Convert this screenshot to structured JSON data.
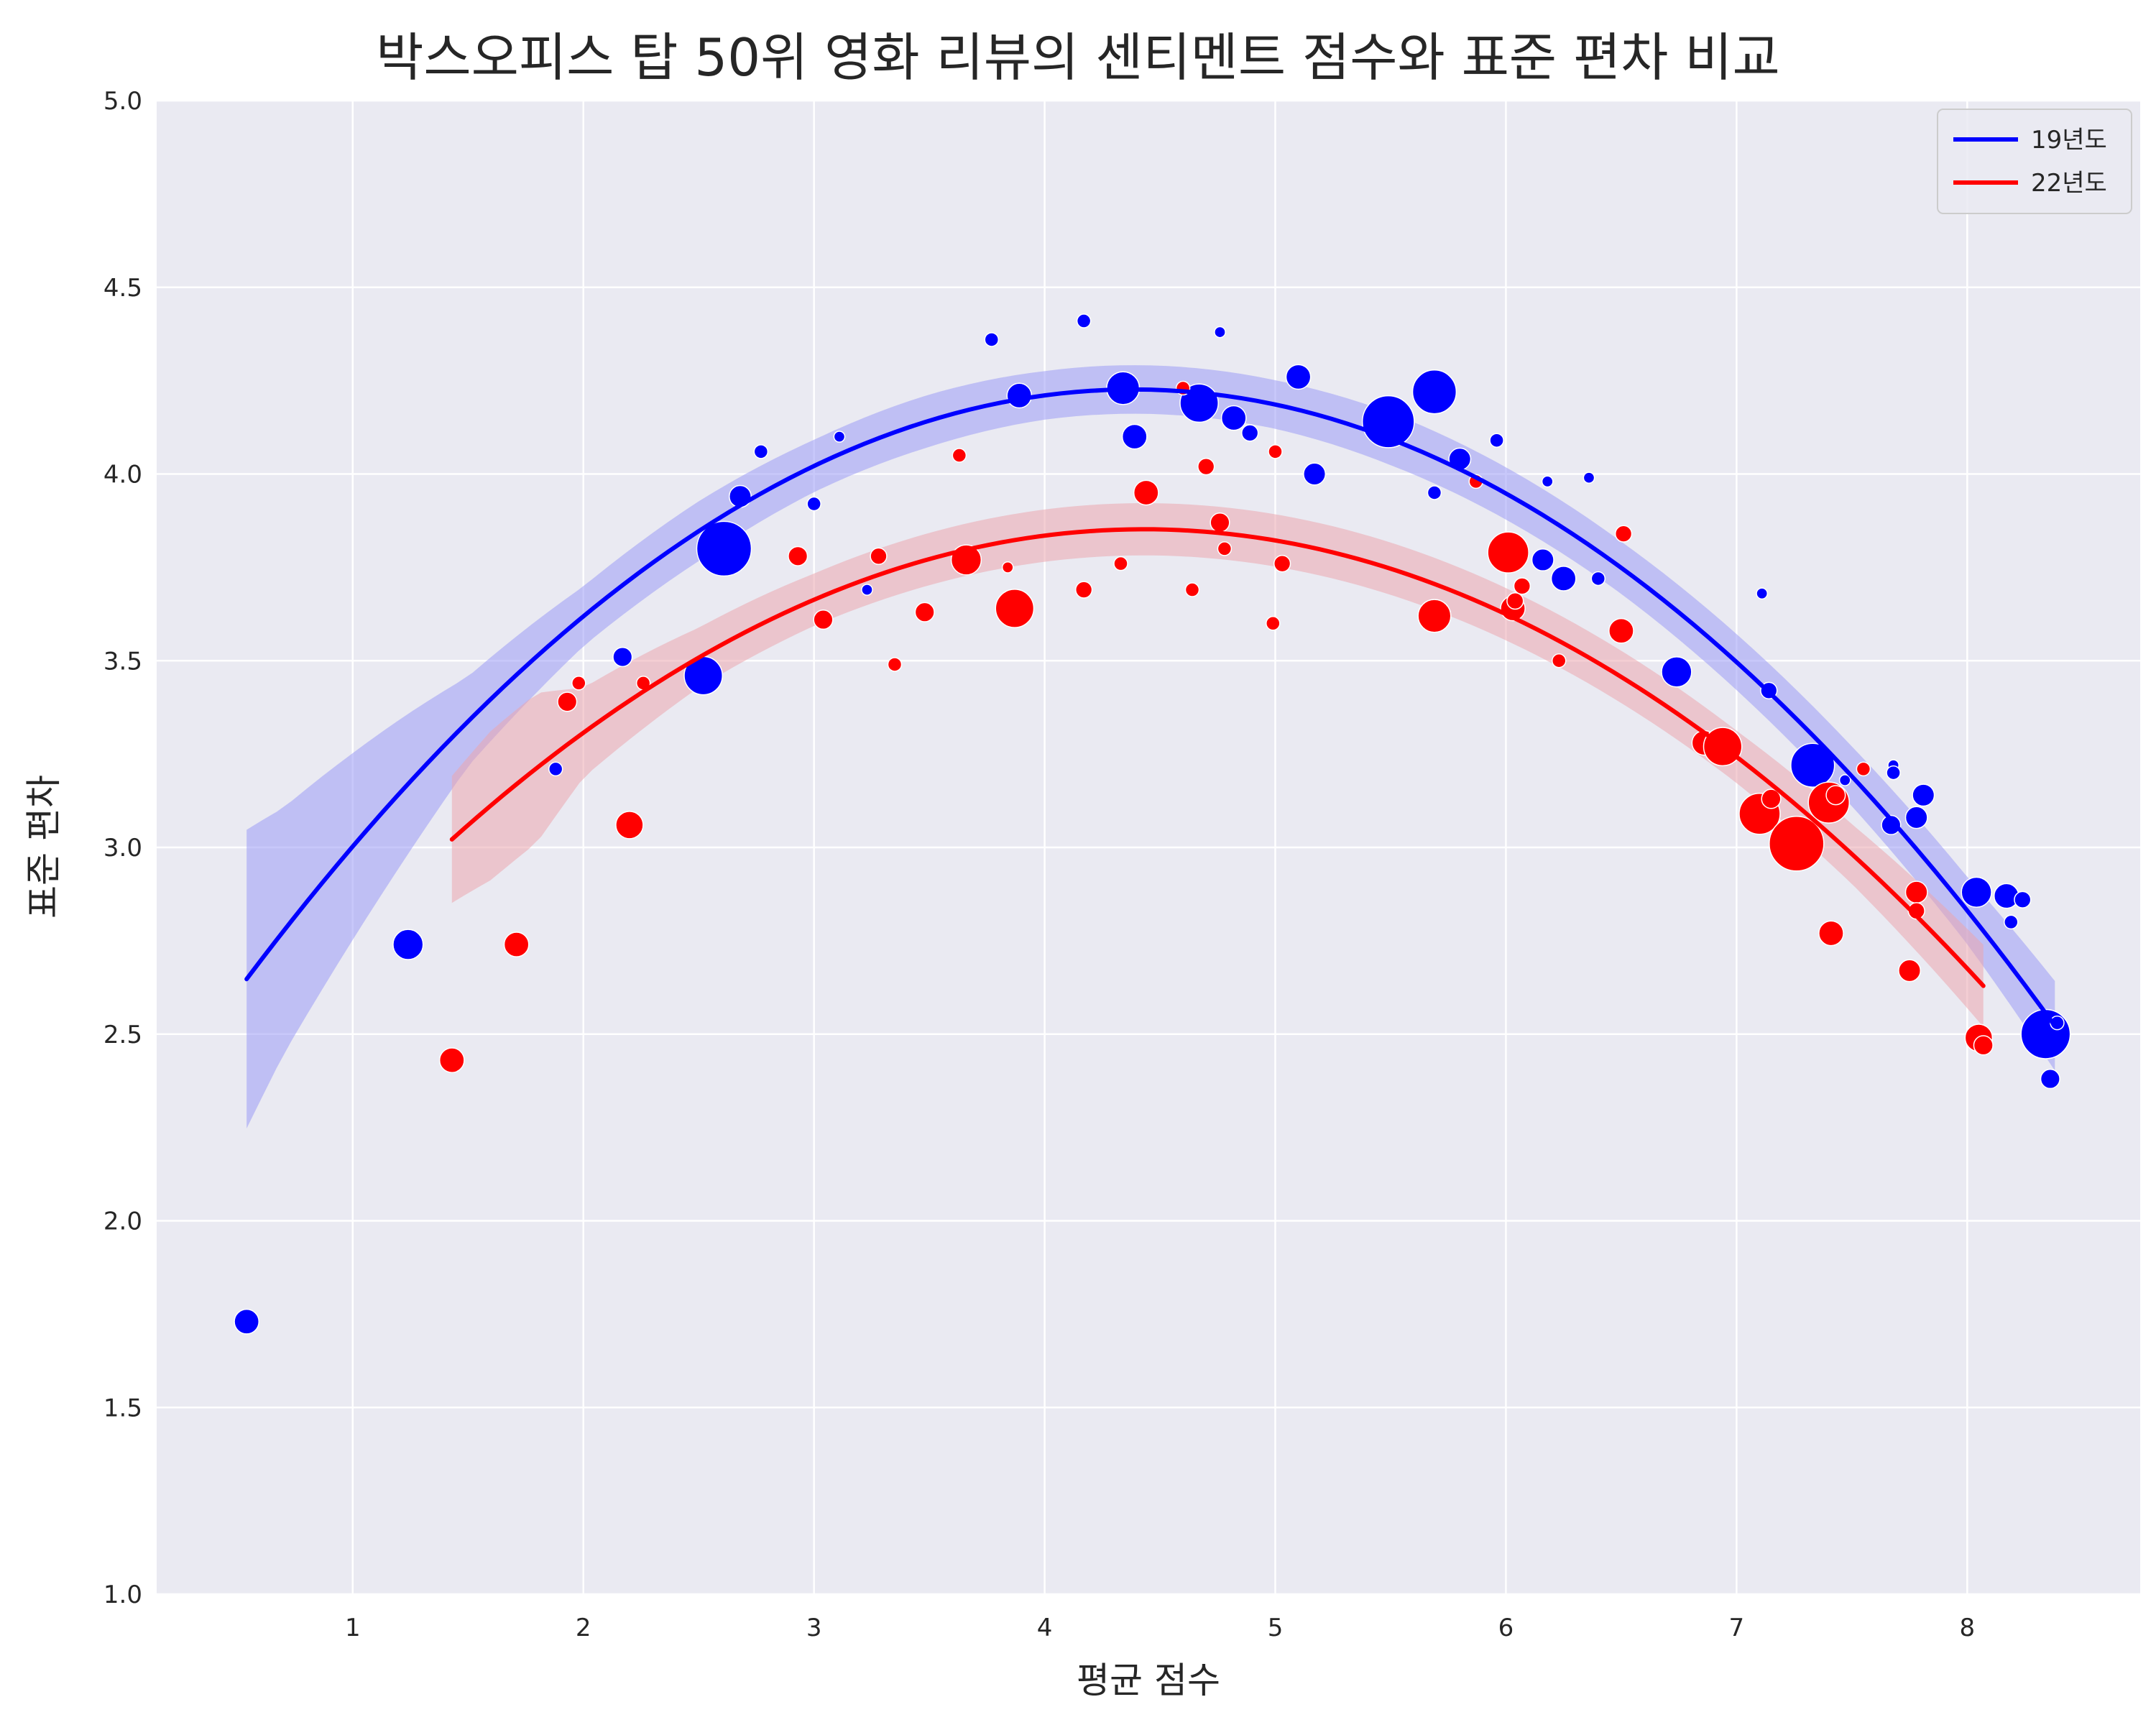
{
  "chart_data": {
    "type": "scatter",
    "title": "박스오피스 탑 50위 영화 리뷰의 센티멘트 점수와 표준 편차 비교",
    "xlabel": "평균 점수",
    "ylabel": "표준 편차",
    "xlim": [
      0.15,
      8.75
    ],
    "ylim": [
      1.0,
      5.0
    ],
    "xticks": [
      1,
      2,
      3,
      4,
      5,
      6,
      7,
      8
    ],
    "yticks": [
      1.0,
      1.5,
      2.0,
      2.5,
      3.0,
      3.5,
      4.0,
      4.5,
      5.0
    ],
    "grid": true,
    "legend_position": "top-right",
    "background": "#eaeaf2",
    "series": [
      {
        "name": "19년도",
        "color": "#0000ff",
        "band_color": "#9b9bf5",
        "fit_coeffs": [
          -0.1068,
          0.9367,
          2.1726
        ],
        "fit_x_range": [
          0.54,
          8.38
        ],
        "band_halfwidth": [
          [
            0.54,
            0.4
          ],
          [
            0.7,
            0.33
          ],
          [
            1.0,
            0.25
          ],
          [
            1.5,
            0.12
          ],
          [
            2.0,
            0.08
          ],
          [
            2.5,
            0.08
          ],
          [
            3.0,
            0.07
          ],
          [
            3.5,
            0.07
          ],
          [
            4.0,
            0.065
          ],
          [
            4.5,
            0.065
          ],
          [
            5.0,
            0.065
          ],
          [
            5.5,
            0.07
          ],
          [
            6.0,
            0.07
          ],
          [
            6.5,
            0.07
          ],
          [
            7.0,
            0.075
          ],
          [
            7.5,
            0.08
          ],
          [
            8.0,
            0.09
          ],
          [
            8.38,
            0.12
          ]
        ],
        "points": [
          {
            "x": 0.54,
            "y": 1.73,
            "size": 9
          },
          {
            "x": 1.24,
            "y": 2.74,
            "size": 11
          },
          {
            "x": 1.88,
            "y": 3.21,
            "size": 5
          },
          {
            "x": 2.17,
            "y": 3.51,
            "size": 7
          },
          {
            "x": 2.52,
            "y": 3.46,
            "size": 14
          },
          {
            "x": 2.61,
            "y": 3.8,
            "size": 20
          },
          {
            "x": 2.68,
            "y": 3.94,
            "size": 8
          },
          {
            "x": 2.77,
            "y": 4.06,
            "size": 5
          },
          {
            "x": 3.0,
            "y": 3.92,
            "size": 5
          },
          {
            "x": 3.11,
            "y": 4.1,
            "size": 4
          },
          {
            "x": 3.23,
            "y": 3.69,
            "size": 4
          },
          {
            "x": 3.77,
            "y": 4.36,
            "size": 5
          },
          {
            "x": 3.89,
            "y": 4.21,
            "size": 9
          },
          {
            "x": 4.17,
            "y": 4.41,
            "size": 5
          },
          {
            "x": 4.34,
            "y": 4.23,
            "size": 12
          },
          {
            "x": 4.39,
            "y": 4.1,
            "size": 9
          },
          {
            "x": 4.67,
            "y": 4.19,
            "size": 14
          },
          {
            "x": 4.76,
            "y": 4.38,
            "size": 4
          },
          {
            "x": 4.82,
            "y": 4.15,
            "size": 9
          },
          {
            "x": 4.89,
            "y": 4.11,
            "size": 6
          },
          {
            "x": 5.1,
            "y": 4.26,
            "size": 9
          },
          {
            "x": 5.17,
            "y": 4.0,
            "size": 8
          },
          {
            "x": 5.49,
            "y": 4.14,
            "size": 19
          },
          {
            "x": 5.69,
            "y": 4.22,
            "size": 16
          },
          {
            "x": 5.69,
            "y": 3.95,
            "size": 5
          },
          {
            "x": 5.8,
            "y": 4.04,
            "size": 8
          },
          {
            "x": 5.96,
            "y": 4.09,
            "size": 5
          },
          {
            "x": 6.16,
            "y": 3.77,
            "size": 8
          },
          {
            "x": 6.18,
            "y": 3.98,
            "size": 4
          },
          {
            "x": 6.25,
            "y": 3.72,
            "size": 9
          },
          {
            "x": 6.36,
            "y": 3.99,
            "size": 4
          },
          {
            "x": 6.4,
            "y": 3.72,
            "size": 5
          },
          {
            "x": 6.74,
            "y": 3.47,
            "size": 11
          },
          {
            "x": 7.11,
            "y": 3.68,
            "size": 4
          },
          {
            "x": 7.14,
            "y": 3.42,
            "size": 6
          },
          {
            "x": 7.33,
            "y": 3.22,
            "size": 16
          },
          {
            "x": 7.47,
            "y": 3.18,
            "size": 4
          },
          {
            "x": 7.67,
            "y": 3.06,
            "size": 7
          },
          {
            "x": 7.68,
            "y": 3.22,
            "size": 4
          },
          {
            "x": 7.68,
            "y": 3.2,
            "size": 5
          },
          {
            "x": 7.78,
            "y": 3.08,
            "size": 8
          },
          {
            "x": 7.81,
            "y": 3.14,
            "size": 8
          },
          {
            "x": 8.04,
            "y": 2.88,
            "size": 11
          },
          {
            "x": 8.17,
            "y": 2.87,
            "size": 9
          },
          {
            "x": 8.19,
            "y": 2.8,
            "size": 5
          },
          {
            "x": 8.24,
            "y": 2.86,
            "size": 6
          },
          {
            "x": 8.34,
            "y": 2.5,
            "size": 18
          },
          {
            "x": 8.36,
            "y": 2.38,
            "size": 7
          },
          {
            "x": 8.39,
            "y": 2.53,
            "size": 5
          }
        ]
      },
      {
        "name": "22년도",
        "color": "#ff0000",
        "band_color": "#eba6af",
        "fit_coeffs": [
          -0.0923,
          0.8178,
          2.0406
        ],
        "fit_x_range": [
          1.43,
          8.07
        ],
        "band_halfwidth": [
          [
            1.43,
            0.17
          ],
          [
            1.6,
            0.2
          ],
          [
            1.8,
            0.2
          ],
          [
            2.0,
            0.12
          ],
          [
            2.5,
            0.08
          ],
          [
            3.0,
            0.07
          ],
          [
            3.5,
            0.07
          ],
          [
            4.0,
            0.07
          ],
          [
            4.5,
            0.07
          ],
          [
            5.0,
            0.07
          ],
          [
            5.5,
            0.07
          ],
          [
            6.0,
            0.07
          ],
          [
            6.5,
            0.07
          ],
          [
            7.0,
            0.07
          ],
          [
            7.5,
            0.08
          ],
          [
            8.07,
            0.11
          ]
        ],
        "points": [
          {
            "x": 1.43,
            "y": 2.43,
            "size": 9
          },
          {
            "x": 1.71,
            "y": 2.74,
            "size": 9
          },
          {
            "x": 1.93,
            "y": 3.39,
            "size": 7
          },
          {
            "x": 1.98,
            "y": 3.44,
            "size": 5
          },
          {
            "x": 2.2,
            "y": 3.06,
            "size": 10
          },
          {
            "x": 2.26,
            "y": 3.44,
            "size": 5
          },
          {
            "x": 2.93,
            "y": 3.78,
            "size": 7
          },
          {
            "x": 3.04,
            "y": 3.61,
            "size": 7
          },
          {
            "x": 3.28,
            "y": 3.78,
            "size": 6
          },
          {
            "x": 3.35,
            "y": 3.49,
            "size": 5
          },
          {
            "x": 3.48,
            "y": 3.63,
            "size": 7
          },
          {
            "x": 3.63,
            "y": 4.05,
            "size": 5
          },
          {
            "x": 3.66,
            "y": 3.77,
            "size": 11
          },
          {
            "x": 3.84,
            "y": 3.75,
            "size": 4
          },
          {
            "x": 3.87,
            "y": 3.64,
            "size": 14
          },
          {
            "x": 4.17,
            "y": 3.69,
            "size": 6
          },
          {
            "x": 4.33,
            "y": 3.76,
            "size": 5
          },
          {
            "x": 4.44,
            "y": 3.95,
            "size": 9
          },
          {
            "x": 4.6,
            "y": 4.23,
            "size": 5
          },
          {
            "x": 4.64,
            "y": 3.69,
            "size": 5
          },
          {
            "x": 4.7,
            "y": 4.02,
            "size": 6
          },
          {
            "x": 4.76,
            "y": 3.87,
            "size": 7
          },
          {
            "x": 4.78,
            "y": 3.8,
            "size": 5
          },
          {
            "x": 4.99,
            "y": 3.6,
            "size": 5
          },
          {
            "x": 5.0,
            "y": 4.06,
            "size": 5
          },
          {
            "x": 5.03,
            "y": 3.76,
            "size": 6
          },
          {
            "x": 5.69,
            "y": 3.62,
            "size": 12
          },
          {
            "x": 5.87,
            "y": 3.98,
            "size": 5
          },
          {
            "x": 6.01,
            "y": 3.79,
            "size": 15
          },
          {
            "x": 6.03,
            "y": 3.64,
            "size": 9
          },
          {
            "x": 6.04,
            "y": 3.66,
            "size": 6
          },
          {
            "x": 6.07,
            "y": 3.7,
            "size": 6
          },
          {
            "x": 6.23,
            "y": 3.5,
            "size": 5
          },
          {
            "x": 6.5,
            "y": 3.58,
            "size": 9
          },
          {
            "x": 6.51,
            "y": 3.84,
            "size": 6
          },
          {
            "x": 6.86,
            "y": 3.28,
            "size": 9
          },
          {
            "x": 6.94,
            "y": 3.27,
            "size": 14
          },
          {
            "x": 7.1,
            "y": 3.09,
            "size": 15
          },
          {
            "x": 7.15,
            "y": 3.13,
            "size": 7
          },
          {
            "x": 7.26,
            "y": 3.01,
            "size": 20
          },
          {
            "x": 7.4,
            "y": 3.12,
            "size": 15
          },
          {
            "x": 7.41,
            "y": 2.77,
            "size": 9
          },
          {
            "x": 7.43,
            "y": 3.14,
            "size": 7
          },
          {
            "x": 7.55,
            "y": 3.21,
            "size": 5
          },
          {
            "x": 7.75,
            "y": 2.67,
            "size": 8
          },
          {
            "x": 7.78,
            "y": 2.88,
            "size": 8
          },
          {
            "x": 7.78,
            "y": 2.83,
            "size": 6
          },
          {
            "x": 8.05,
            "y": 2.49,
            "size": 10
          },
          {
            "x": 8.07,
            "y": 2.47,
            "size": 7
          }
        ]
      }
    ]
  }
}
